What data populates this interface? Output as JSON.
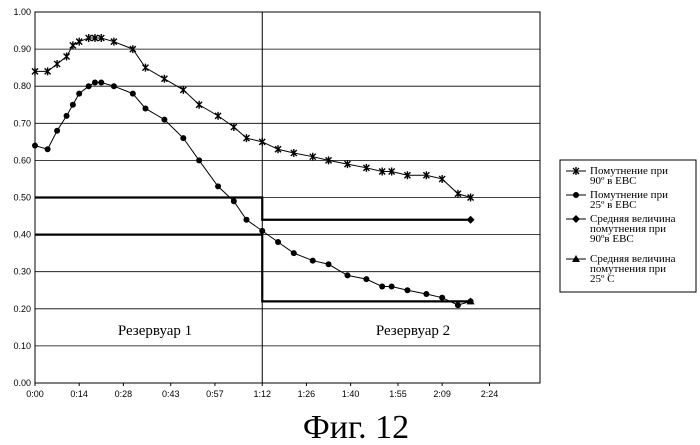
{
  "chart_data": {
    "type": "line",
    "title": "",
    "xlabel": "",
    "ylabel": "",
    "ylim": [
      0,
      1.0
    ],
    "xlim_min": [
      0,
      160
    ],
    "y_ticks": [
      "0.00",
      "0.10",
      "0.20",
      "0.30",
      "0.40",
      "0.50",
      "0.60",
      "0.70",
      "0.80",
      "0.90",
      "1.00"
    ],
    "x_ticks": [
      {
        "label": "0:00",
        "min": 0
      },
      {
        "label": "0:14",
        "min": 14
      },
      {
        "label": "0:28",
        "min": 28
      },
      {
        "label": "0:43",
        "min": 43
      },
      {
        "label": "0:57",
        "min": 57
      },
      {
        "label": "1:12",
        "min": 72
      },
      {
        "label": "1:26",
        "min": 86
      },
      {
        "label": "1:40",
        "min": 100
      },
      {
        "label": "1:55",
        "min": 115
      },
      {
        "label": "2:09",
        "min": 129
      },
      {
        "label": "2:24",
        "min": 144
      }
    ],
    "grid": true,
    "legend_placement": "right",
    "series": [
      {
        "name": "Помутнение при 90º в EBC",
        "marker": "star",
        "x": [
          0,
          4,
          7,
          10,
          12,
          14,
          17,
          19,
          21,
          25,
          31,
          35,
          41,
          47,
          52,
          58,
          63,
          67,
          72,
          77,
          82,
          88,
          93,
          99,
          105,
          110,
          113,
          118,
          124,
          129,
          134,
          138
        ],
        "y": [
          0.84,
          0.84,
          0.86,
          0.88,
          0.91,
          0.92,
          0.93,
          0.93,
          0.93,
          0.92,
          0.9,
          0.85,
          0.82,
          0.79,
          0.75,
          0.72,
          0.69,
          0.66,
          0.65,
          0.63,
          0.62,
          0.61,
          0.6,
          0.59,
          0.58,
          0.57,
          0.57,
          0.56,
          0.56,
          0.55,
          0.51,
          0.5
        ]
      },
      {
        "name": "Помутнение при 25º в EBC",
        "marker": "circle",
        "x": [
          0,
          4,
          7,
          10,
          12,
          14,
          17,
          19,
          21,
          25,
          31,
          35,
          41,
          47,
          52,
          58,
          63,
          67,
          72,
          77,
          82,
          88,
          93,
          99,
          105,
          110,
          113,
          118,
          124,
          129,
          134,
          138
        ],
        "y": [
          0.64,
          0.63,
          0.68,
          0.72,
          0.75,
          0.78,
          0.8,
          0.81,
          0.81,
          0.8,
          0.78,
          0.74,
          0.71,
          0.66,
          0.6,
          0.53,
          0.49,
          0.44,
          0.41,
          0.38,
          0.35,
          0.33,
          0.32,
          0.29,
          0.28,
          0.26,
          0.26,
          0.25,
          0.24,
          0.23,
          0.21,
          0.22
        ]
      },
      {
        "name": "Средняя величина помутнения при 90ºв EBC",
        "marker": "diamond",
        "x": [
          0,
          72,
          72,
          72,
          138
        ],
        "y": [
          0.5,
          0.5,
          0.5,
          0.44,
          0.44
        ]
      },
      {
        "name": "Средняя величина помутнения при 25º С",
        "marker": "triangle",
        "x": [
          0,
          72,
          72,
          72,
          138
        ],
        "y": [
          0.4,
          0.4,
          0.41,
          0.22,
          0.22
        ]
      }
    ],
    "annotations": [
      "Резервуар 1",
      "Резервуар 2"
    ]
  },
  "legend": {
    "items": [
      {
        "lines": [
          "Помутнение при",
          "90º в EBC"
        ]
      },
      {
        "lines": [
          "Помутнение при",
          "25º в EBC"
        ]
      },
      {
        "lines": [
          "Средняя величина",
          "помутнения при",
          "90ºв EBC"
        ]
      },
      {
        "lines": [
          "Средняя величина",
          "помутнения при",
          "25º С"
        ]
      }
    ]
  },
  "regions": {
    "left": "Резервуар 1",
    "right": "Резервуар 2"
  },
  "caption": "Фиг. 12"
}
